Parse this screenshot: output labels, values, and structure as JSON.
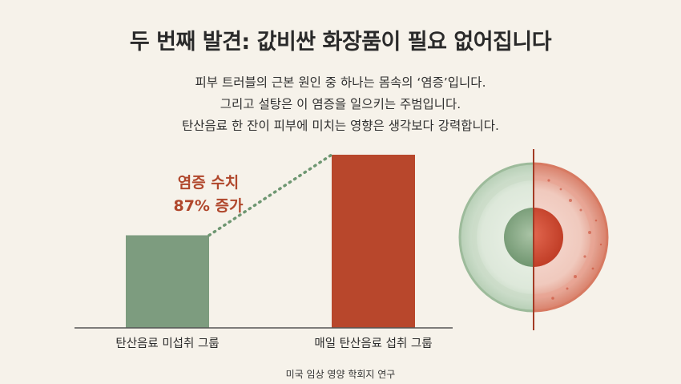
{
  "title": "두 번째 발견: 값비싼 화장품이 필요 없어집니다",
  "subtitle_lines": [
    "피부 트러블의 근본 원인 중 하나는 몸속의 ‘염증’입니다.",
    "그리고 설탕은 이 염증을 일으키는 주범입니다.",
    "탄산음료 한 잔이 피부에 미치는 영향은 생각보다 강력합니다."
  ],
  "callout": {
    "line1": "염증 수치",
    "line2": "87% 증가"
  },
  "source": "미국 임상 영양 학회지 연구",
  "colors": {
    "bar_control": "#7d9c7f",
    "bar_daily": "#b8472c",
    "accent_text": "#b0472c",
    "dots": "#6e9772"
  },
  "chart_data": {
    "type": "bar",
    "categories": [
      "탄산음료 미섭취 그룹",
      "매일 탄산음료 섭취 그룹"
    ],
    "values": [
      100,
      187
    ],
    "ylim": [
      0,
      187
    ],
    "annotation": "염증 수치 87% 증가",
    "grid": false,
    "legend": "none"
  },
  "illustration": {
    "type": "skin-cell-cross-section",
    "left_state": "healthy",
    "right_state": "inflamed"
  }
}
